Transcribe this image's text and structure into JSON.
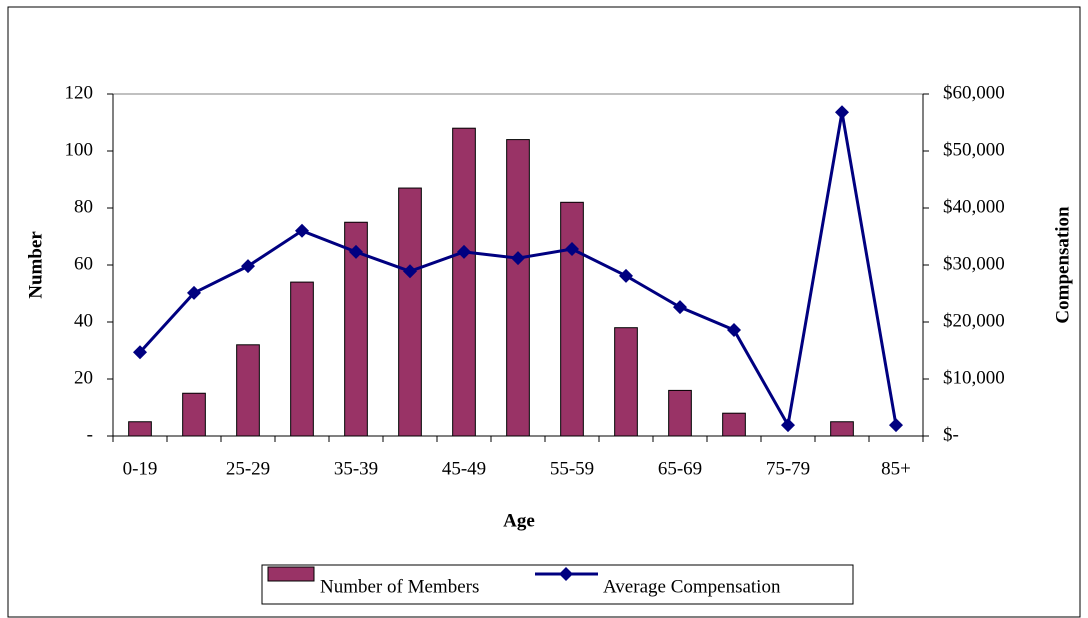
{
  "chart_data": {
    "type": "combo",
    "x_label": "Age",
    "y_label": "Number",
    "y2_label": "Compensation",
    "categories": [
      "0-19",
      null,
      "25-29",
      null,
      "35-39",
      null,
      "45-49",
      null,
      "55-59",
      null,
      "65-69",
      null,
      "75-79",
      null,
      "85+"
    ],
    "series": [
      {
        "name": "Number of Members",
        "type": "bar",
        "color": "#993366",
        "axis": "y",
        "values": [
          5,
          15,
          32,
          54,
          75,
          87,
          108,
          104,
          82,
          38,
          16,
          8,
          0,
          5,
          0
        ]
      },
      {
        "name": "Average Compensation",
        "type": "line",
        "color": "#000080",
        "axis": "y2",
        "values": [
          14700,
          25100,
          29800,
          36000,
          32300,
          28900,
          32300,
          31200,
          32800,
          28100,
          22600,
          18600,
          1900,
          56800,
          1900
        ]
      }
    ],
    "ylim": [
      0,
      120
    ],
    "yticks": [
      {
        "value": 0,
        "label": "-"
      },
      20,
      40,
      60,
      80,
      100,
      120
    ],
    "y2lim": [
      0,
      60000
    ],
    "y2ticks": [
      {
        "value": 0,
        "label": "$-"
      },
      {
        "value": 10000,
        "label": "$10,000"
      },
      {
        "value": 20000,
        "label": "$20,000"
      },
      {
        "value": 30000,
        "label": "$30,000"
      },
      {
        "value": 40000,
        "label": "$40,000"
      },
      {
        "value": 50000,
        "label": "$50,000"
      },
      {
        "value": 60000,
        "label": "$60,000"
      }
    ],
    "legend": "bottom"
  }
}
